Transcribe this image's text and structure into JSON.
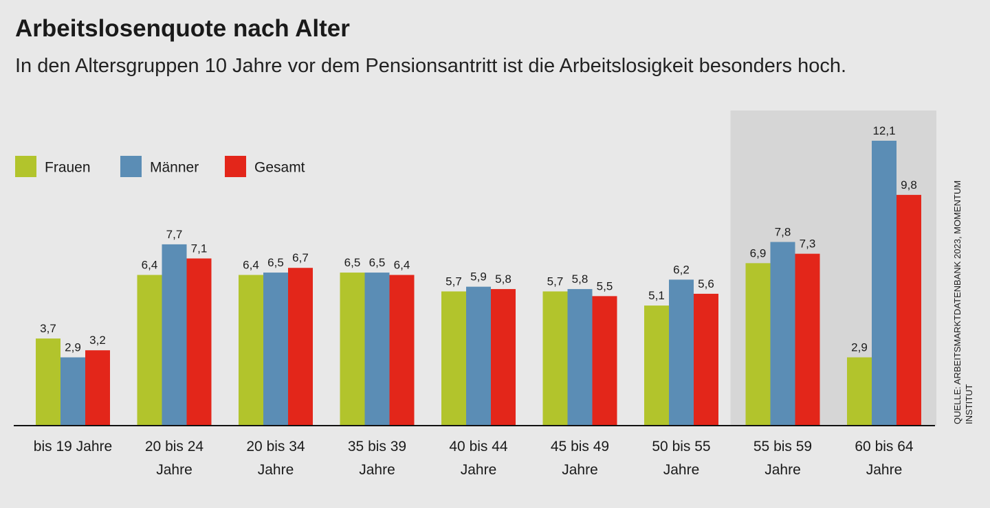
{
  "chart_data": {
    "type": "bar",
    "title": "Arbeitslosenquote nach Alter",
    "subtitle": "In den Altersgruppen 10 Jahre vor dem Pensionsantritt ist die Arbeitslosigkeit besonders hoch.",
    "categories": [
      [
        "bis 19 Jahre"
      ],
      [
        "20 bis 24",
        "Jahre"
      ],
      [
        "20 bis 34",
        "Jahre"
      ],
      [
        "35 bis 39",
        "Jahre"
      ],
      [
        "40 bis 44",
        "Jahre"
      ],
      [
        "45 bis 49",
        "Jahre"
      ],
      [
        "50 bis 55",
        "Jahre"
      ],
      [
        "55 bis 59",
        "Jahre"
      ],
      [
        "60 bis 64",
        "Jahre"
      ]
    ],
    "series": [
      {
        "name": "Frauen",
        "color": "#b2c42c",
        "values": [
          3.7,
          6.4,
          6.4,
          6.5,
          5.7,
          5.7,
          5.1,
          6.9,
          2.9
        ],
        "labels": [
          "3,7",
          "6,4",
          "6,4",
          "6,5",
          "5,7",
          "5,7",
          "5,1",
          "6,9",
          "2,9"
        ]
      },
      {
        "name": "Männer",
        "color": "#5b8db5",
        "values": [
          2.9,
          7.7,
          6.5,
          6.5,
          5.9,
          5.8,
          6.2,
          7.8,
          12.1
        ],
        "labels": [
          "2,9",
          "7,7",
          "6,5",
          "6,5",
          "5,9",
          "5,8",
          "6,2",
          "7,8",
          "12,1"
        ]
      },
      {
        "name": "Gesamt",
        "color": "#e3261a",
        "values": [
          3.2,
          7.1,
          6.7,
          6.4,
          5.8,
          5.5,
          5.6,
          7.3,
          9.8
        ],
        "labels": [
          "3,2",
          "7,1",
          "6,7",
          "6,4",
          "5,8",
          "5,5",
          "5,6",
          "7,3",
          "9,8"
        ]
      }
    ],
    "highlighted_categories": [
      7,
      8
    ],
    "highlight_color": "#d6d6d6",
    "legend_position": "top-left",
    "grid": false,
    "ylim": [
      0,
      12.1
    ],
    "source": [
      "QUELLE: ARBEITSMARKTDATENBANK 2023, MOMENTUM",
      "INSTITUT"
    ]
  }
}
